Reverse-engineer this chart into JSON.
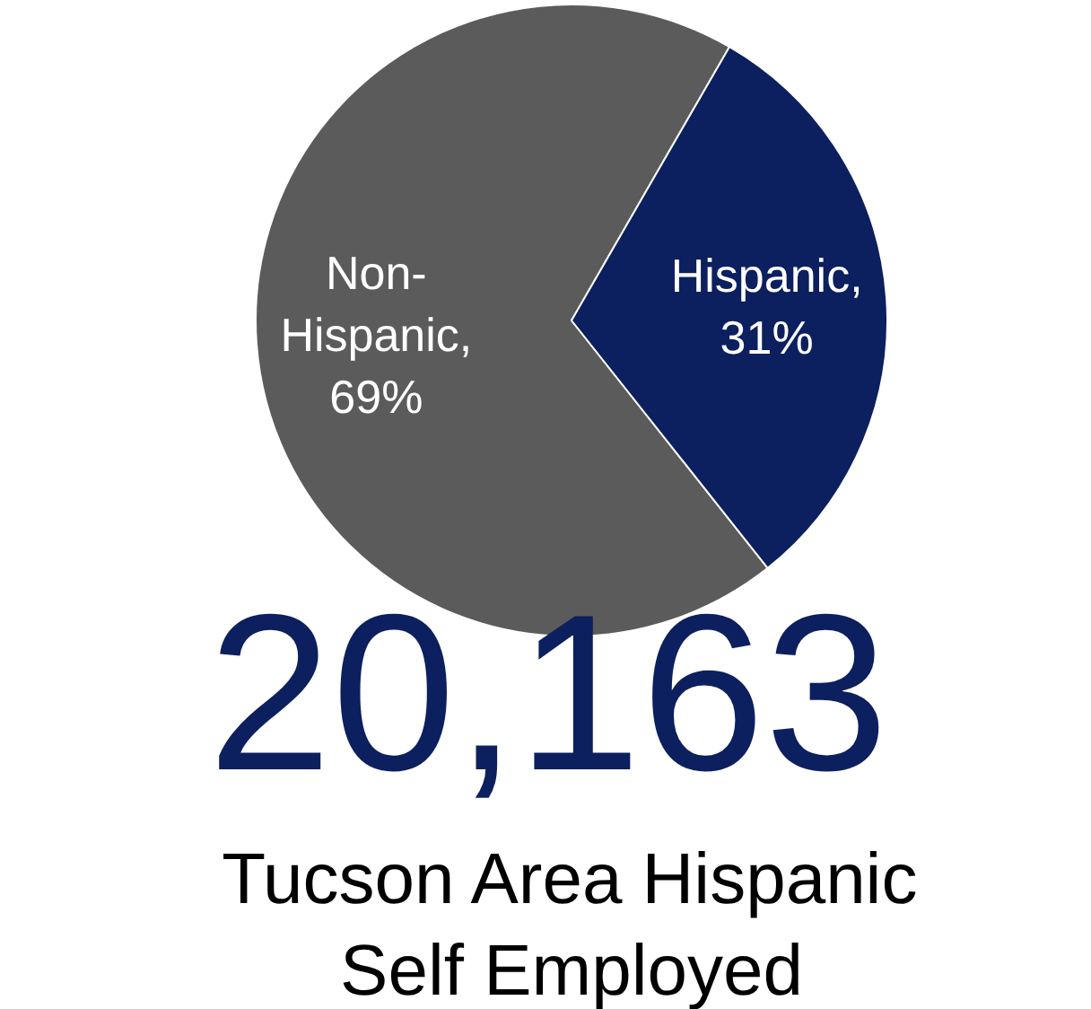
{
  "chart_data": {
    "type": "pie",
    "title": "Tucson Area Hispanic\nSelf Employed",
    "values": [
      69,
      31
    ],
    "colors": [
      "#5b5b5b",
      "#0c1f5e"
    ],
    "value_labels": [
      "Non-Hispanic, 69%",
      "Hispanic, 31%"
    ],
    "annotations": [
      "20,163"
    ]
  }
}
